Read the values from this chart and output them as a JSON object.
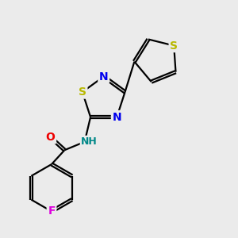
{
  "background_color": "#ebebeb",
  "bond_color": "#000000",
  "atom_colors": {
    "S": "#b8b800",
    "N": "#0000ee",
    "O": "#ee0000",
    "F": "#dd00dd",
    "NH": "#008888",
    "C": "#000000"
  },
  "bond_width": 1.6,
  "doff": 0.055,
  "font_size": 10
}
